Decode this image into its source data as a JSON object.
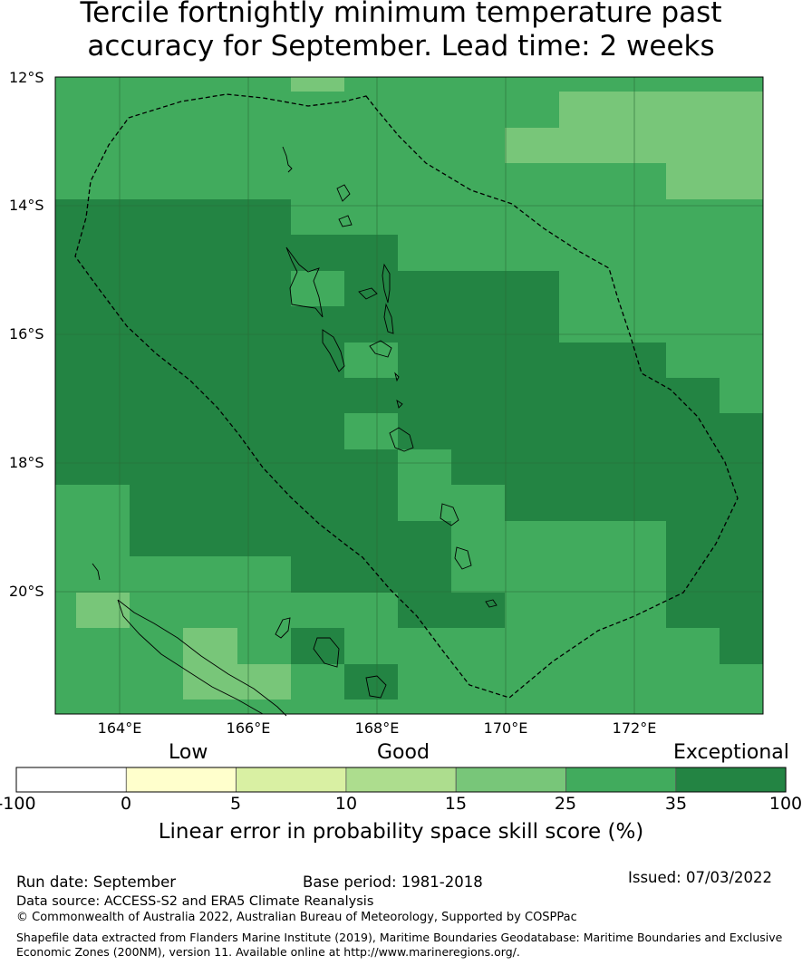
{
  "title_line1": "Tercile fortnightly minimum temperature past",
  "title_line2": "accuracy for September. Lead time: 2 weeks",
  "map": {
    "lat_labels": [
      "12°S",
      "14°S",
      "16°S",
      "18°S",
      "20°S"
    ],
    "lon_labels": [
      "164°E",
      "166°E",
      "168°E",
      "170°E",
      "172°E"
    ],
    "lon_range": [
      163,
      174
    ],
    "lat_range": [
      -21.9,
      -12
    ],
    "colors": {
      "c15_25": "#78c679",
      "c25_35": "#41ab5d",
      "c35_100": "#238443"
    }
  },
  "legend": {
    "categories": [
      "Low",
      "Good",
      "Exceptional"
    ],
    "ticks": [
      "-100",
      "0",
      "5",
      "10",
      "15",
      "25",
      "35",
      "100"
    ],
    "bins": [
      {
        "from": -100,
        "to": 0,
        "color": "#ffffff"
      },
      {
        "from": 0,
        "to": 5,
        "color": "#ffffcc"
      },
      {
        "from": 5,
        "to": 10,
        "color": "#d9f0a3"
      },
      {
        "from": 10,
        "to": 15,
        "color": "#addd8e"
      },
      {
        "from": 15,
        "to": 25,
        "color": "#78c679"
      },
      {
        "from": 25,
        "to": 35,
        "color": "#41ab5d"
      },
      {
        "from": 35,
        "to": 100,
        "color": "#238443"
      }
    ],
    "title": "Linear error in probability space skill score (%)"
  },
  "footer": {
    "run_date": "Run date: September",
    "base_period": "Base period: 1981-2018",
    "issued": "Issued: 07/03/2022",
    "data_source": "Data source: ACCESS-S2 and ERA5 Climate Reanalysis",
    "copyright": "© Commonwealth of Australia 2022, Australian Bureau of Meteorology, Supported by COSPPac",
    "shapefile_line1": "Shapefile data extracted from Flanders Marine Institute (2019), Maritime Boundaries Geodatabase: Maritime Boundaries and Exclusive",
    "shapefile_line2": "Economic Zones (200NM), version 11. Available online at http://www.marineregions.org/."
  }
}
